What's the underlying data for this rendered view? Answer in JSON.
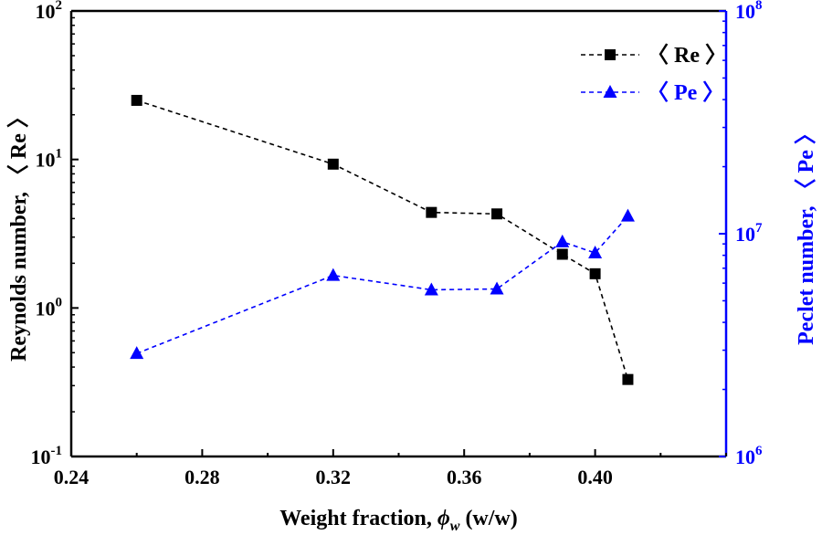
{
  "chart_data": {
    "type": "line",
    "x": [
      0.26,
      0.32,
      0.35,
      0.37,
      0.39,
      0.4,
      0.41
    ],
    "xlabel": {
      "prefix": "Weight fraction, ",
      "symbol": "ϕ",
      "sub": "w",
      "suffix": " (w/w)"
    },
    "xlim": [
      0.24,
      0.44
    ],
    "xticks": [
      0.24,
      0.28,
      0.32,
      0.36,
      0.4
    ],
    "xtick_labels": [
      "0.24",
      "0.28",
      "0.32",
      "0.36",
      "0.40"
    ],
    "y_left": {
      "label": "Reynolds number, 〈 Re 〉",
      "scale": "log",
      "lim": [
        0.1,
        100
      ],
      "ticks": [
        {
          "value": 100,
          "base": "10",
          "exp": "2"
        },
        {
          "value": 10,
          "base": "10",
          "exp": "1"
        },
        {
          "value": 1,
          "base": "10",
          "exp": "0"
        },
        {
          "value": 0.1,
          "base": "10",
          "exp": "-1"
        }
      ],
      "color": "#000000"
    },
    "y_right": {
      "label": "Peclet number, 〈 Pe 〉",
      "scale": "log",
      "lim": [
        1000000,
        100000000
      ],
      "ticks": [
        {
          "value": 100000000,
          "base": "10",
          "exp": "8"
        },
        {
          "value": 10000000,
          "base": "10",
          "exp": "7"
        },
        {
          "value": 1000000,
          "base": "10",
          "exp": "6"
        }
      ],
      "color": "#0000ff"
    },
    "series": [
      {
        "name": "〈 Re 〉",
        "axis": "left",
        "marker": "square",
        "color": "#000000",
        "values": [
          25.0,
          9.3,
          4.4,
          4.3,
          2.3,
          1.7,
          0.33
        ]
      },
      {
        "name": "〈 Pe 〉",
        "axis": "right",
        "marker": "triangle",
        "color": "#0000ff",
        "values": [
          2900000,
          6500000,
          5600000,
          5650000,
          9200000,
          8200000,
          12000000
        ]
      }
    ],
    "legend": "top-right",
    "grid": false
  }
}
